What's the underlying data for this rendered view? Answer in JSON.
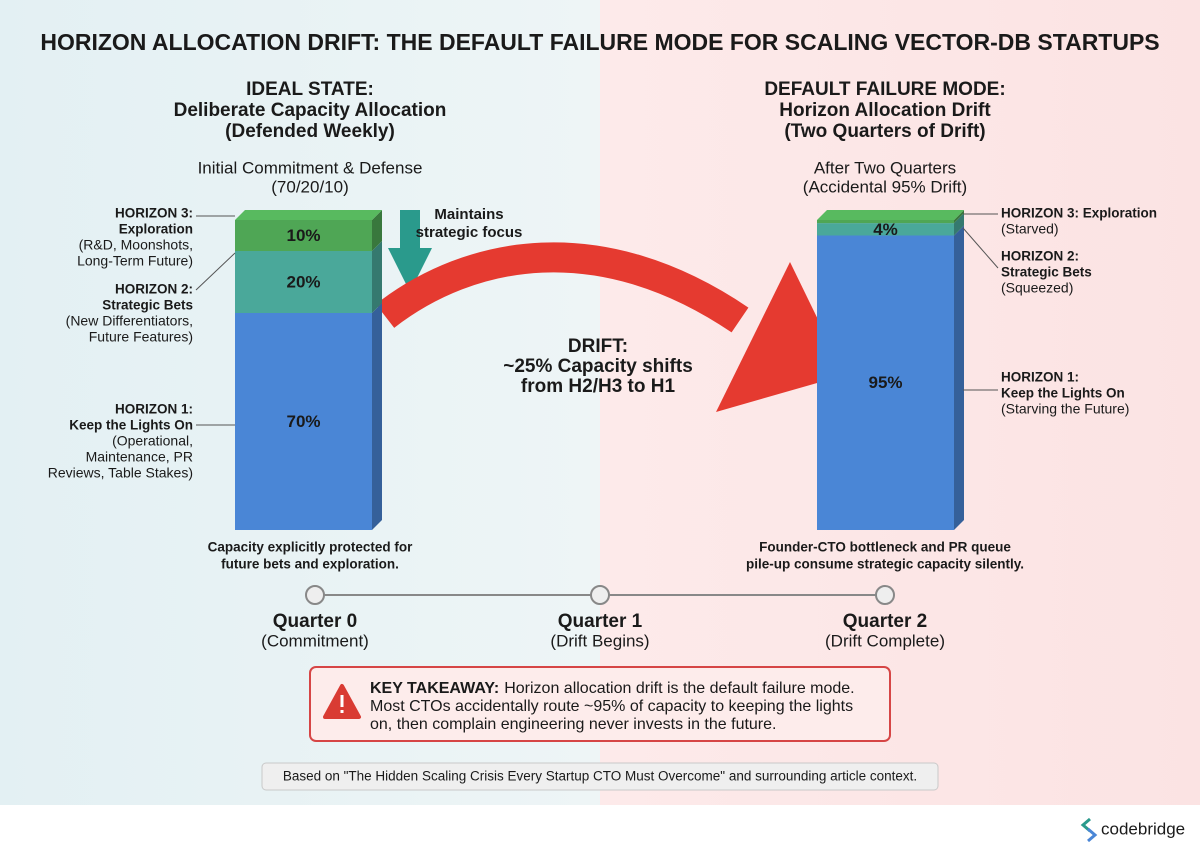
{
  "title": "HORIZON ALLOCATION DRIFT: THE DEFAULT FAILURE MODE FOR SCALING VECTOR-DB STARTUPS",
  "left": {
    "heading": [
      "IDEAL STATE:",
      "Deliberate Capacity Allocation",
      "(Defended Weekly)"
    ],
    "subheading": [
      "Initial Commitment & Defense",
      "(70/20/10)"
    ],
    "values": [
      70,
      20,
      10
    ],
    "value_labels": [
      "70%",
      "20%",
      "10%"
    ],
    "labels": [
      {
        "title": [
          "HORIZON 1:",
          "Keep the Lights On"
        ],
        "desc": [
          "(Operational,",
          "Maintenance, PR",
          "Reviews, Table Stakes)"
        ]
      },
      {
        "title": [
          "HORIZON 2:",
          "Strategic Bets"
        ],
        "desc": [
          "(New Differentiators,",
          "Future Features)"
        ]
      },
      {
        "title": [
          "HORIZON 3:",
          "Exploration"
        ],
        "desc": [
          "(R&D, Moonshots,",
          "Long-Term Future)"
        ]
      }
    ],
    "caption": [
      "Capacity explicitly protected for",
      "future bets and exploration."
    ],
    "focus_note": [
      "Maintains",
      "strategic focus"
    ]
  },
  "right": {
    "heading": [
      "DEFAULT FAILURE MODE:",
      "Horizon Allocation Drift",
      "(Two Quarters of Drift)"
    ],
    "subheading": [
      "After Two Quarters",
      "(Accidental 95% Drift)"
    ],
    "values": [
      95,
      4,
      1
    ],
    "value_labels": [
      "95%",
      "4%",
      null
    ],
    "labels": [
      {
        "title": [
          "HORIZON 1:",
          "Keep the Lights On"
        ],
        "desc": [
          "(Starving the Future)"
        ]
      },
      {
        "title": [
          "HORIZON 2:",
          "Strategic Bets"
        ],
        "desc": [
          "(Squeezed)"
        ]
      },
      {
        "title": [
          "HORIZON 3: Exploration"
        ],
        "desc": [
          "(Starved)"
        ]
      }
    ],
    "caption": [
      "Founder-CTO bottleneck and PR queue",
      "pile-up consume strategic capacity silently."
    ]
  },
  "colors": [
    "#4a86d6",
    "#4aa89a",
    "#4fa655"
  ],
  "drift": [
    "DRIFT:",
    "~25% Capacity shifts",
    "from H2/H3 to H1"
  ],
  "timeline": [
    {
      "title": "Quarter 0",
      "sub": "(Commitment)"
    },
    {
      "title": "Quarter 1",
      "sub": "(Drift Begins)"
    },
    {
      "title": "Quarter 2",
      "sub": "(Drift Complete)"
    }
  ],
  "takeaway": {
    "label": "KEY TAKEAWAY:",
    "lines": [
      "Horizon allocation drift is the default failure mode.",
      "Most CTOs accidentally route ~95% of capacity to keeping the lights",
      "on, then complain engineering never invests in the future."
    ]
  },
  "source": "Based on \"The Hidden Scaling Crisis Every Startup CTO Must Overcome\" and surrounding article context.",
  "brand": "codebridge"
}
